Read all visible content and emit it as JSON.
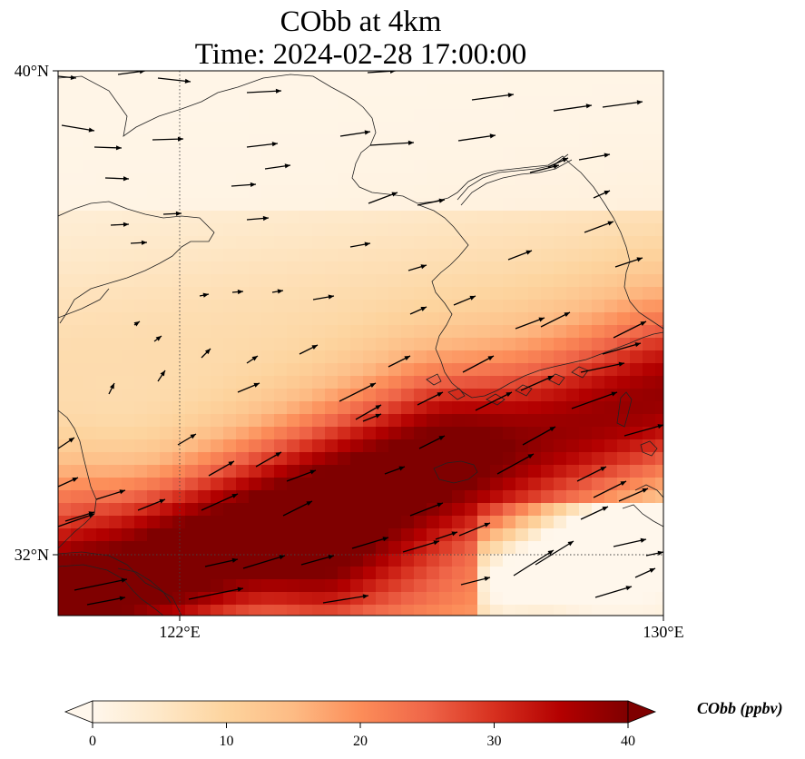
{
  "title": "CObb at 4km",
  "subtitle": "Time: 2024-02-28 17:00:00",
  "axes": {
    "y_ticks": [
      {
        "value": 40,
        "label": "40°N"
      },
      {
        "value": 32,
        "label": "32°N"
      }
    ],
    "x_ticks": [
      {
        "value": 122,
        "label": "122°E"
      },
      {
        "value": 130,
        "label": "130°E"
      }
    ],
    "lon_range": [
      120,
      130
    ],
    "lat_range": [
      31,
      40
    ],
    "gridlines": "dotted at 122°E and 32°N"
  },
  "colorbar": {
    "label": "CObb (ppbv)",
    "min": 0,
    "max": 40,
    "ticks": [
      "0",
      "10",
      "20",
      "30",
      "40"
    ],
    "extend": "both",
    "colormap": "OrRd",
    "colors": [
      "#fff7ec",
      "#fee8c8",
      "#fdd49e",
      "#fdbb84",
      "#fc8d59",
      "#ef6548",
      "#d7301f",
      "#b30000",
      "#7f0000"
    ]
  },
  "chart_data": {
    "type": "heatmap",
    "variable": "CObb",
    "units": "ppbv",
    "level": "4km",
    "time": "2024-02-28 17:00:00",
    "plume_description": "high concentrations (30-40 ppbv) in a band from around 32°N 121°E extending northeast to about 34.5°N 130°E; low values (0-5 ppbv) north of 37°N",
    "wind_vectors": "predominantly westerly to southwesterly winds"
  }
}
